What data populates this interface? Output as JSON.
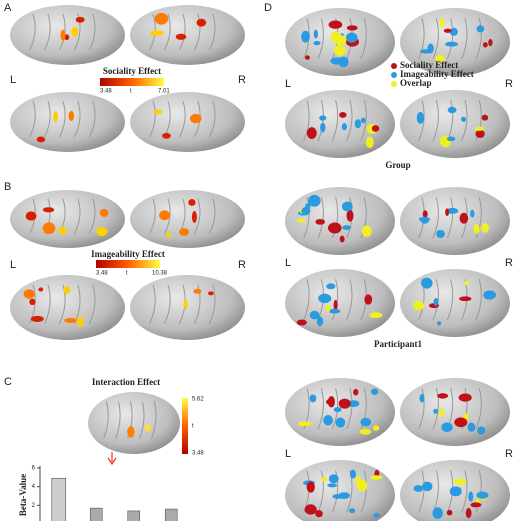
{
  "panel_a": {
    "label": "A",
    "left": "L",
    "right": "R",
    "colorbar": {
      "title": "Sociality Effect",
      "min": "3.48",
      "stat": "t",
      "max": "7.01"
    }
  },
  "panel_b": {
    "label": "B",
    "left": "L",
    "right": "R",
    "colorbar": {
      "title": "Imageability Effect",
      "min": "3.48",
      "stat": "t",
      "max": "10.38"
    }
  },
  "panel_c": {
    "label": "C",
    "title": "Interaction Effect",
    "colorbar": {
      "max": "5.62",
      "stat": "t",
      "min": "3.48"
    },
    "bar_chart": {
      "ylabel": "Beta-Value",
      "values": [
        4.9,
        1.7,
        1.4,
        1.6
      ],
      "ylim": [
        0,
        6
      ],
      "yticks": [
        2,
        4,
        6
      ]
    }
  },
  "panel_d": {
    "label": "D",
    "legend": [
      "Sociality Effect",
      "Imageability Effect",
      "Overlap"
    ],
    "groups": [
      {
        "name": "Group",
        "left": "L",
        "right": "R"
      },
      {
        "name": "Participant1",
        "left": "L",
        "right": "R"
      },
      {
        "left": "L",
        "right": "R"
      }
    ]
  }
}
